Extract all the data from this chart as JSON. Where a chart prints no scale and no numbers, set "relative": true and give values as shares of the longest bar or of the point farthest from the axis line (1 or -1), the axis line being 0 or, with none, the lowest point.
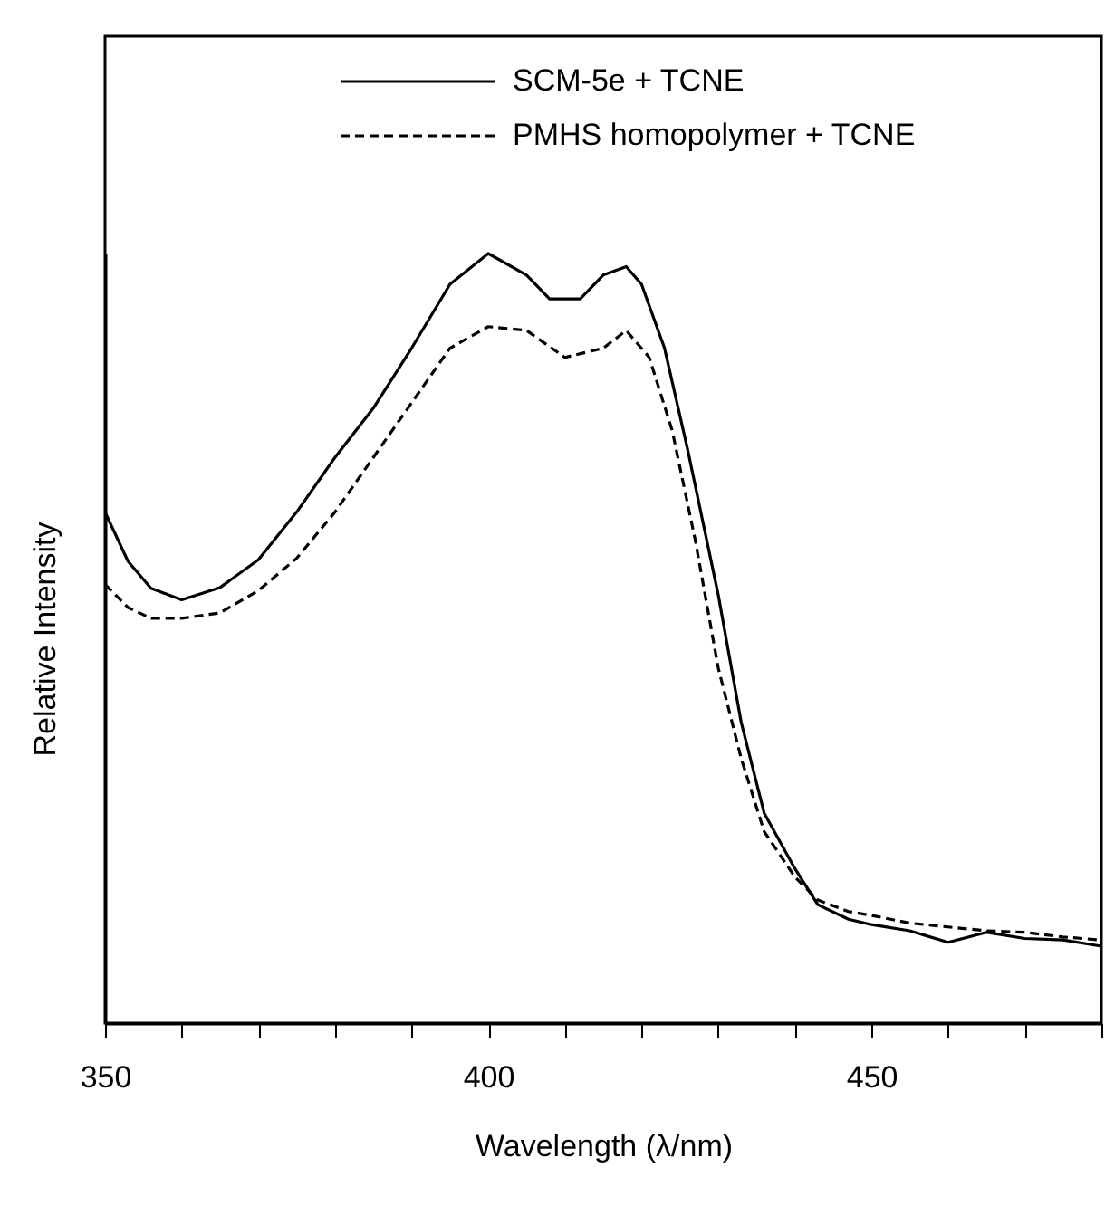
{
  "chart_data": {
    "type": "line",
    "xlabel": "Wavelength (λ/nm)",
    "ylabel": "Relative Intensity",
    "relative": true,
    "legend": "top",
    "grid": false,
    "xlim": [
      350,
      480
    ],
    "xticks": [
      350,
      {
        "value": 360,
        "label": null
      },
      {
        "value": 370,
        "label": null
      },
      {
        "value": 380,
        "label": null
      },
      {
        "value": 390,
        "label": null
      },
      400,
      {
        "value": 410,
        "label": null
      },
      {
        "value": 420,
        "label": null
      },
      {
        "value": 430,
        "label": null
      },
      {
        "value": 440,
        "label": null
      },
      450,
      {
        "value": 460,
        "label": null
      },
      {
        "value": 470,
        "label": null
      },
      {
        "value": 480,
        "label": null
      }
    ],
    "series": [
      {
        "name": "SCM-5e + TCNE",
        "color": "#000000",
        "line_style": "solid",
        "x": [
          350,
          353,
          356,
          360,
          365,
          370,
          375,
          380,
          385,
          390,
          395,
          400,
          405,
          408,
          412,
          415,
          418,
          420,
          423,
          426,
          430,
          433,
          436,
          440,
          443,
          447,
          450,
          455,
          460,
          465,
          470,
          475,
          480
        ],
        "values": [
          0.664,
          0.6,
          0.565,
          0.55,
          0.566,
          0.602,
          0.664,
          0.735,
          0.799,
          0.877,
          0.96,
          1.0,
          0.972,
          0.941,
          0.941,
          0.972,
          0.983,
          0.96,
          0.877,
          0.746,
          0.557,
          0.391,
          0.273,
          0.201,
          0.154,
          0.135,
          0.128,
          0.12,
          0.105,
          0.118,
          0.11,
          0.108,
          0.1
        ]
      },
      {
        "name": "PMHS homopolymer + TCNE",
        "color": "#000000",
        "line_style": "dashed",
        "x": [
          350,
          353,
          356,
          360,
          365,
          370,
          375,
          380,
          385,
          390,
          395,
          400,
          405,
          410,
          415,
          418,
          421,
          424,
          427,
          430,
          433,
          436,
          440,
          443,
          447,
          450,
          455,
          460,
          465,
          470,
          475,
          480
        ],
        "values": [
          0.57,
          0.54,
          0.526,
          0.526,
          0.533,
          0.562,
          0.604,
          0.664,
          0.735,
          0.806,
          0.877,
          0.905,
          0.9,
          0.865,
          0.877,
          0.9,
          0.865,
          0.77,
          0.628,
          0.462,
          0.344,
          0.249,
          0.19,
          0.16,
          0.145,
          0.14,
          0.13,
          0.125,
          0.12,
          0.118,
          0.112,
          0.108
        ]
      }
    ]
  }
}
